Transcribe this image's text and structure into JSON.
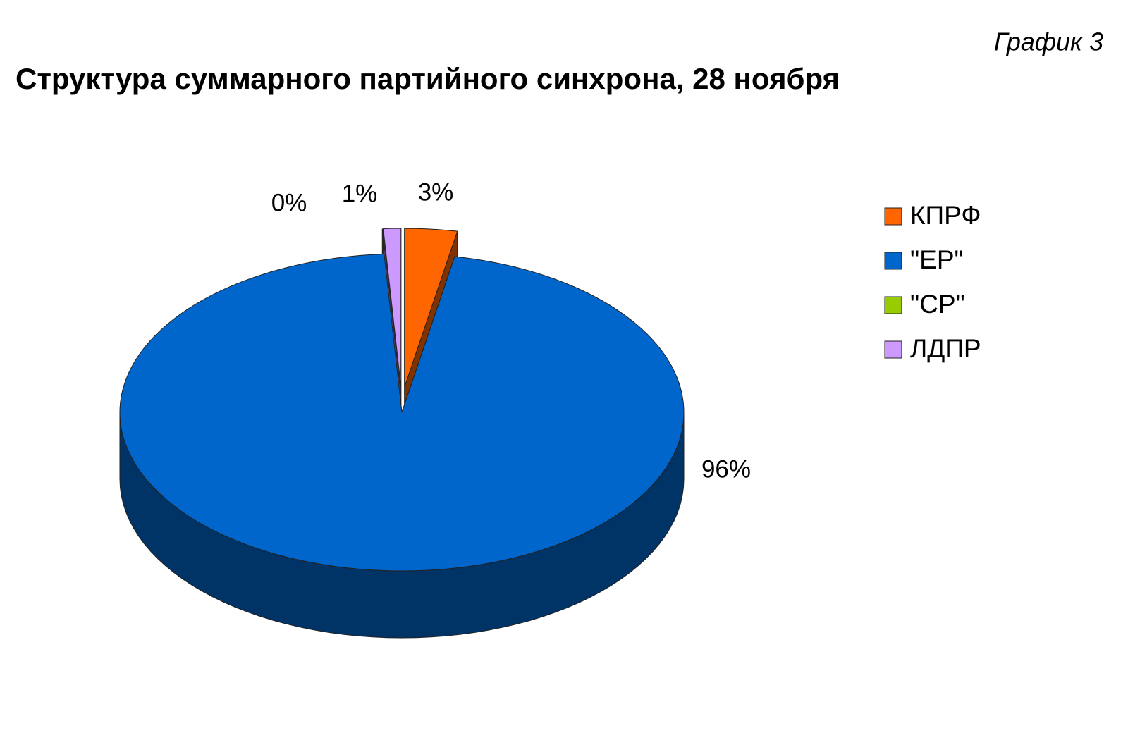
{
  "chart_data": {
    "type": "pie",
    "title": "Структура суммарного партийного синхрона, 28 ноября",
    "annotation": "График 3",
    "categories": [
      "КПРФ",
      "\"ЕР\"",
      "\"СР\"",
      "ЛДПР"
    ],
    "values": [
      3,
      96,
      0,
      1
    ],
    "value_labels": [
      "3%",
      "96%",
      "0%",
      "1%"
    ],
    "colors": [
      "#ff6600",
      "#0066cc",
      "#99cc00",
      "#cc99ff"
    ],
    "legend": "right"
  }
}
